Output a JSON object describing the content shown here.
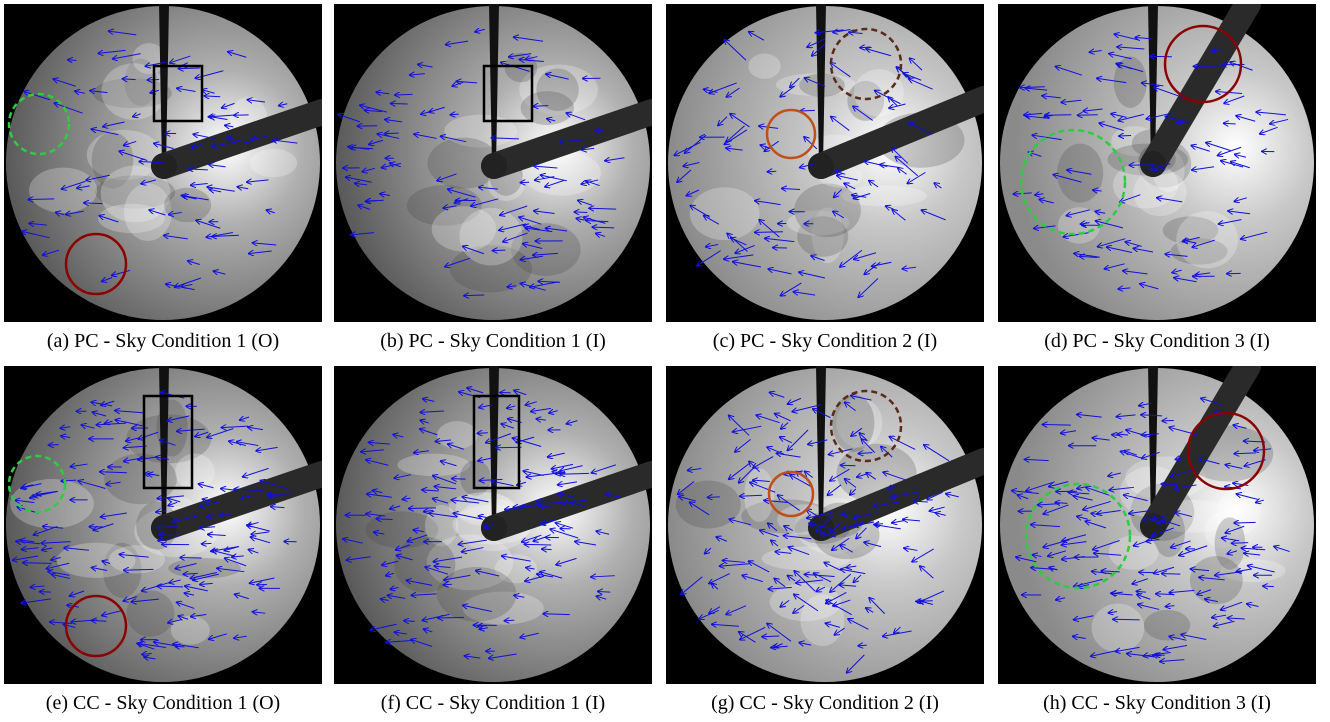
{
  "figure": {
    "panels": [
      {
        "caption": "(a) PC - Sky Condition 1 (O)"
      },
      {
        "caption": "(b) PC - Sky Condition 1 (I)"
      },
      {
        "caption": "(c) PC - Sky Condition 2 (I)"
      },
      {
        "caption": "(d) PC - Sky Condition 3 (I)"
      },
      {
        "caption": "(e) CC - Sky Condition 1 (O)"
      },
      {
        "caption": "(f) CC - Sky Condition 1 (I)"
      },
      {
        "caption": "(g) CC - Sky Condition 2 (I)"
      },
      {
        "caption": "(h) CC - Sky Condition 3 (I)"
      }
    ]
  }
}
